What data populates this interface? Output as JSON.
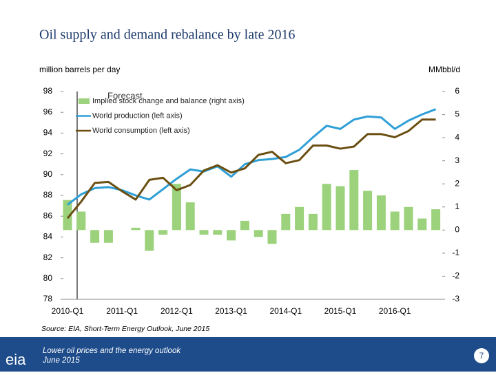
{
  "chart_data": {
    "type": "combo",
    "title": "Oil supply and demand rebalance by late 2016",
    "y_label": "million barrels per day",
    "y2_label": "MMbbl/d",
    "annotation": "Forecast",
    "source": "Source: EIA, Short-Term Energy Outlook, June 2015",
    "categories": [
      "2010-Q1",
      null,
      null,
      null,
      "2011-Q1",
      null,
      null,
      null,
      "2012-Q1",
      null,
      null,
      null,
      "2013-Q1",
      null,
      null,
      null,
      "2014-Q1",
      null,
      null,
      null,
      "2015-Q1",
      null,
      null,
      null,
      "2016-Q1",
      null,
      null,
      null
    ],
    "ylim": [
      78,
      98
    ],
    "yticks": [
      78,
      80,
      82,
      84,
      86,
      88,
      90,
      92,
      94,
      96,
      98
    ],
    "y2lim": [
      -3,
      6
    ],
    "y2ticks": [
      -3,
      -2,
      -1,
      0,
      1,
      2,
      3,
      4,
      5,
      6
    ],
    "series": [
      {
        "name": "Implied stock change and balance (right axis)",
        "type": "bar",
        "axis": "y2",
        "color": "#9bd27b",
        "values": [
          1.3,
          0.8,
          -0.55,
          -0.55,
          0,
          0.1,
          -0.9,
          -0.2,
          2.0,
          1.2,
          -0.2,
          -0.2,
          -0.45,
          0.4,
          -0.3,
          -0.6,
          0.7,
          1.0,
          0.7,
          2.0,
          1.9,
          2.6,
          1.7,
          1.5,
          0.8,
          1.0,
          0.5,
          0.9
        ]
      },
      {
        "name": "World production (left axis)",
        "type": "line",
        "color": "#2e9fd6",
        "values": [
          87.1,
          88.1,
          88.7,
          88.8,
          88.5,
          88.0,
          87.6,
          88.6,
          89.6,
          90.5,
          90.3,
          90.8,
          89.8,
          91.0,
          91.4,
          91.5,
          91.7,
          92.4,
          93.6,
          94.7,
          94.4,
          95.3,
          95.6,
          95.5,
          94.4,
          95.2,
          95.8,
          96.3
        ]
      },
      {
        "name": "World consumption (left axis)",
        "type": "line",
        "color": "#6b4f12",
        "values": [
          85.8,
          87.4,
          89.2,
          89.3,
          88.4,
          87.6,
          89.5,
          89.7,
          88.5,
          89.0,
          90.4,
          90.9,
          90.2,
          90.6,
          91.9,
          92.2,
          91.1,
          91.4,
          92.8,
          92.8,
          92.5,
          92.7,
          93.9,
          93.9,
          93.6,
          94.2,
          95.3,
          95.3
        ]
      }
    ]
  },
  "footer": {
    "logo": "eia",
    "subtitle": "Lower oil prices and the energy outlook",
    "date": "June 2015",
    "page": "7"
  }
}
